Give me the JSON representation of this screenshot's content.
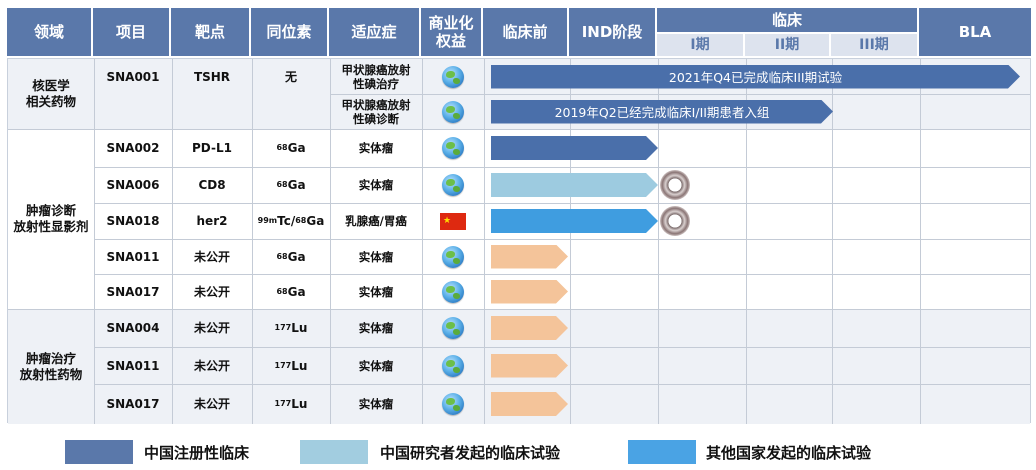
{
  "header": {
    "domain": "领域",
    "project": "项目",
    "target": "靶点",
    "isotope": "同位素",
    "indication": "适应症",
    "rights": "商业化\n权益",
    "preclinical": "临床前",
    "ind": "IND阶段",
    "clinical": "临床",
    "phase1": "I期",
    "phase2": "II期",
    "phase3": "III期",
    "bla": "BLA"
  },
  "groups": [
    {
      "label": "核医学\n相关药物"
    },
    {
      "label": "肿瘤诊断\n放射性显影剂"
    },
    {
      "label": "肿瘤治疗\n放射性药物"
    }
  ],
  "rows": [
    {
      "project": "SNA001",
      "target": "TSHR",
      "isotope_mass": "",
      "isotope_symbol": "无",
      "indication": "甲状腺癌放射\n性碘治疗",
      "rights_icon": "globe-icon"
    },
    {
      "project": "",
      "target": "",
      "isotope_mass": "",
      "isotope_symbol": "",
      "indication": "甲状腺癌放射\n性碘诊断",
      "rights_icon": "globe-icon"
    },
    {
      "project": "SNA002",
      "target": "PD-L1",
      "isotope_mass": "68",
      "isotope_symbol": "Ga",
      "indication": "实体瘤",
      "rights_icon": "globe-icon"
    },
    {
      "project": "SNA006",
      "target": "CD8",
      "isotope_mass": "68",
      "isotope_symbol": "Ga",
      "indication": "实体瘤",
      "rights_icon": "globe-icon"
    },
    {
      "project": "SNA018",
      "target": "her2",
      "isotope_mass": "99m",
      "isotope_symbol": "Tc/",
      "isotope_mass2": "68",
      "isotope_symbol2": "Ga",
      "indication": "乳腺癌/胃癌",
      "rights_icon": "china-flag-icon"
    },
    {
      "project": "SNA011",
      "target": "未公开",
      "isotope_mass": "68",
      "isotope_symbol": "Ga",
      "indication": "实体瘤",
      "rights_icon": "globe-icon"
    },
    {
      "project": "SNA017",
      "target": "未公开",
      "isotope_mass": "68",
      "isotope_symbol": "Ga",
      "indication": "实体瘤",
      "rights_icon": "globe-icon"
    },
    {
      "project": "SNA004",
      "target": "未公开",
      "isotope_mass": "177",
      "isotope_symbol": "Lu",
      "indication": "实体瘤",
      "rights_icon": "globe-icon"
    },
    {
      "project": "SNA011",
      "target": "未公开",
      "isotope_mass": "177",
      "isotope_symbol": "Lu",
      "indication": "实体瘤",
      "rights_icon": "globe-icon"
    },
    {
      "project": "SNA017",
      "target": "未公开",
      "isotope_mass": "177",
      "isotope_symbol": "Lu",
      "indication": "实体瘤",
      "rights_icon": "globe-icon"
    }
  ],
  "progress": [
    {
      "stage_reached": "III期",
      "kind": "中国注册性临床",
      "label": "2021年Q4已完成临床III期试验",
      "color": "#4a6faa"
    },
    {
      "stage_reached": "I期/II期",
      "kind": "中国注册性临床",
      "label": "2019年Q2已经完成临床I/II期患者入组",
      "color": "#4a6faa"
    },
    {
      "stage_reached": "IND阶段",
      "kind": "中国注册性临床",
      "label": "",
      "color": "#4a6faa"
    },
    {
      "stage_reached": "IND阶段",
      "kind": "中国研究者发起的临床试验",
      "label": "",
      "color": "#9dcbe0"
    },
    {
      "stage_reached": "IND阶段",
      "kind": "其他国家发起的临床试验",
      "label": "",
      "color": "#3f9de0"
    },
    {
      "stage_reached": "临床前",
      "kind": "preclinical",
      "label": "",
      "color": "#f4c49a"
    },
    {
      "stage_reached": "临床前",
      "kind": "preclinical",
      "label": "",
      "color": "#f4c49a"
    },
    {
      "stage_reached": "临床前",
      "kind": "preclinical",
      "label": "",
      "color": "#f4c49a"
    },
    {
      "stage_reached": "临床前",
      "kind": "preclinical",
      "label": "",
      "color": "#f4c49a"
    },
    {
      "stage_reached": "临床前",
      "kind": "preclinical",
      "label": "",
      "color": "#f4c49a"
    }
  ],
  "legend": [
    {
      "label": "中国注册性临床",
      "color": "#5a78aa"
    },
    {
      "label": "中国研究者发起的临床试验",
      "color": "#a2cde0"
    },
    {
      "label": "其他国家发起的临床试验",
      "color": "#4aa3e4"
    }
  ],
  "colors": {
    "header": "#5a78aa",
    "border": "#c4cbd6"
  }
}
